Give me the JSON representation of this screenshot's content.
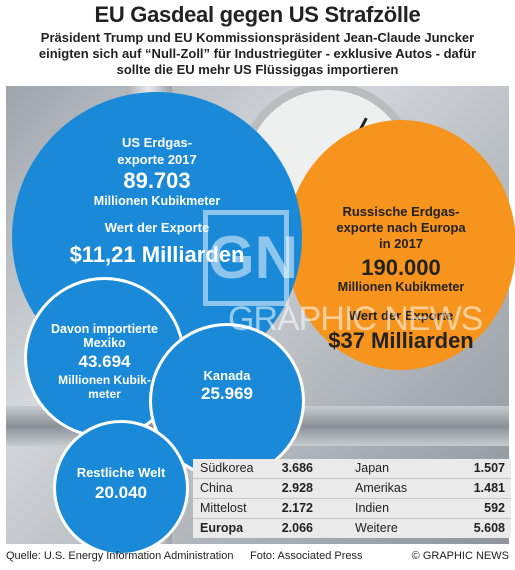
{
  "title": "EU Gasdeal gegen US Strafzölle",
  "subtitle": [
    "Präsident Trump und EU Kommissionspräsident Jean-Claude Juncker",
    "einigten sich auf “Null-Zoll” für Industriegüter - exklusive Autos -  dafür",
    "sollte die EU mehr US Flüssiggas importieren"
  ],
  "us": {
    "label1": "US Erdgas-",
    "label2": "exporte 2017",
    "volume": "89.703",
    "unit": "Millionen Kubikmeter",
    "value_label": "Wert der Exporte",
    "value": "$11,21 Milliarden"
  },
  "mexico": {
    "label1": "Davon importierte",
    "label2": "Mexiko",
    "volume": "43.694",
    "unit1": "Millionen Kubik-",
    "unit2": "meter"
  },
  "canada": {
    "label": "Kanada",
    "volume": "25.969"
  },
  "rest": {
    "label": "Restliche Welt",
    "volume": "20.040"
  },
  "russia": {
    "label1": "Russische Erdgas-",
    "label2": "exporte nach Europa",
    "label3": "in 2017",
    "volume": "190.000",
    "unit": "Millionen Kubikmeter",
    "value_label": "Wert der Exporte",
    "value": "$37 Milliarden"
  },
  "table": [
    {
      "n1": "Südkorea",
      "v1": "3.686",
      "n2": "Japan",
      "v2": "1.507"
    },
    {
      "n1": "China",
      "v1": "2.928",
      "n2": "Amerikas",
      "v2": "1.481"
    },
    {
      "n1": "Mittelost",
      "v1": "2.172",
      "n2": "Indien",
      "v2": "592"
    },
    {
      "n1": "Europa",
      "v1": "2.066",
      "n2": "Weitere",
      "v2": "5.608"
    }
  ],
  "watermark": "GRAPHIC NEWS",
  "watermark_logo": "GN",
  "footer": {
    "source": "Quelle: U.S. Energy Information Administration",
    "photo": "Foto: Associated Press",
    "copyright": "© GRAPHIC NEWS"
  },
  "colors": {
    "blue": "#1a8ad8",
    "orange": "#f7941e"
  }
}
